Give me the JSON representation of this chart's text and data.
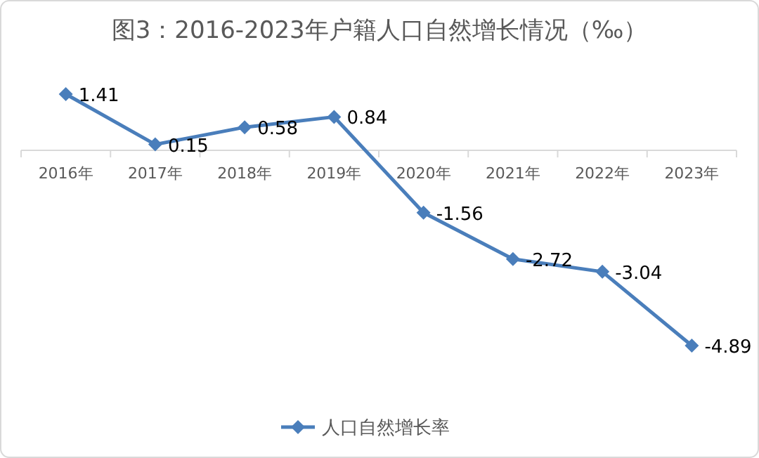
{
  "chart_data": {
    "type": "line",
    "title": "图3：2016-2023年户籍人口自然增长情况（‰）",
    "categories": [
      "2016年",
      "2017年",
      "2018年",
      "2019年",
      "2020年",
      "2021年",
      "2022年",
      "2023年"
    ],
    "series": [
      {
        "name": "人口自然增长率",
        "color": "#4a7ebb",
        "values": [
          1.41,
          0.15,
          0.58,
          0.84,
          -1.56,
          -2.72,
          -3.04,
          -4.89
        ]
      }
    ],
    "data_labels": true,
    "marker": "diamond",
    "line_style": "solid",
    "legend": "bottom"
  }
}
